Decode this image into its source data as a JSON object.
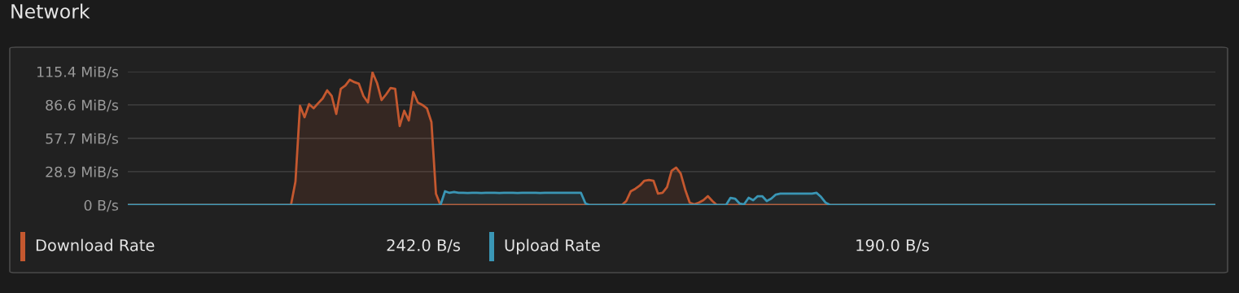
{
  "chart_data": {
    "type": "area",
    "title": "Network",
    "categories": [
      null,
      null,
      null,
      null,
      null,
      null,
      null,
      null,
      null,
      null,
      null,
      null,
      null,
      null,
      null,
      null,
      null,
      null,
      null,
      null,
      null,
      null,
      null,
      null,
      null,
      null,
      null,
      null,
      null,
      null,
      null,
      null,
      null,
      null,
      null,
      null,
      null,
      null,
      null,
      null,
      null,
      null,
      null,
      null,
      null,
      null,
      null,
      null,
      null,
      null,
      null,
      null,
      null,
      null,
      null,
      null,
      null,
      null,
      null,
      null,
      null,
      null,
      null,
      null,
      null,
      null,
      null,
      null,
      null,
      null,
      null,
      null,
      null,
      null,
      null,
      null,
      null,
      null,
      null,
      null,
      null,
      null,
      null,
      null,
      null,
      null,
      null,
      null,
      null,
      null,
      null,
      null,
      null,
      null,
      null,
      null,
      null,
      null,
      null,
      null,
      null,
      null,
      null,
      null,
      null,
      null,
      null,
      null,
      null,
      null,
      null,
      null,
      null,
      null,
      null,
      null,
      null,
      null,
      null,
      null,
      null,
      null,
      null,
      null,
      null,
      null,
      null,
      null,
      null,
      null,
      null,
      null,
      null,
      null,
      null,
      null,
      null,
      null,
      null,
      null,
      null,
      null,
      null,
      null,
      null,
      null,
      null,
      null,
      null,
      null,
      null,
      null,
      null,
      null,
      null,
      null,
      null,
      null,
      null,
      null,
      null,
      null,
      null,
      null,
      null,
      null,
      null,
      null,
      null,
      null,
      null,
      null,
      null,
      null,
      null,
      null,
      null,
      null,
      null,
      null,
      null,
      null,
      null,
      null,
      null,
      null,
      null,
      null,
      null,
      null,
      null,
      null,
      null,
      null,
      null,
      null,
      null,
      null,
      null,
      null,
      null,
      null,
      null,
      null,
      null,
      null,
      null,
      null,
      null,
      null,
      null,
      null,
      null,
      null,
      null,
      null,
      null,
      null,
      null,
      null,
      null,
      null,
      null,
      null,
      null,
      null,
      null,
      null,
      null,
      null,
      null,
      null,
      null,
      null,
      null,
      null,
      null,
      null,
      null,
      null,
      null
    ],
    "series": [
      {
        "name": "Download Rate",
        "color": "#c4582f",
        "values": [
          0,
          0,
          0,
          0,
          0,
          0,
          0,
          0,
          0,
          0,
          0,
          0,
          0,
          0,
          0,
          0,
          0,
          0,
          0,
          0,
          0,
          0,
          0,
          0,
          0,
          0,
          0,
          0,
          0,
          0,
          0,
          0,
          0,
          0,
          0,
          0,
          0,
          20.4,
          85.9,
          76.0,
          87.3,
          83.7,
          88.0,
          92.2,
          99.2,
          94.3,
          78.8,
          100.6,
          103.4,
          108.4,
          106.3,
          104.9,
          94.3,
          88.7,
          114.7,
          105.6,
          90.8,
          95.7,
          101.3,
          100.6,
          68.3,
          81.6,
          73.2,
          97.8,
          88.7,
          86.6,
          83.7,
          71.8,
          9.9,
          0,
          0,
          0,
          0,
          0,
          0,
          0,
          0,
          0,
          0,
          0,
          0,
          0,
          0,
          0,
          0,
          0,
          0,
          0,
          0,
          0,
          0,
          0,
          0,
          0,
          0,
          0,
          0,
          0,
          0,
          0,
          0,
          0,
          0,
          0,
          0,
          0,
          0,
          0,
          0,
          0,
          3.5,
          12.0,
          14.1,
          16.9,
          21.1,
          21.8,
          21.1,
          9.9,
          10.6,
          15.5,
          29.6,
          32.4,
          27.4,
          13.4,
          2.1,
          0.7,
          2.1,
          4.2,
          7.7,
          3.5,
          0,
          0,
          0,
          0,
          0,
          0,
          0,
          0,
          0,
          0,
          0,
          0,
          0,
          0,
          0,
          0,
          0,
          0,
          0,
          0,
          0,
          0,
          0,
          0,
          0,
          0,
          0,
          0,
          0,
          0,
          0,
          0,
          0,
          0,
          0,
          0,
          0,
          0,
          0,
          0,
          0,
          0,
          0,
          0,
          0,
          0,
          0,
          0,
          0,
          0,
          0,
          0,
          0,
          0,
          0,
          0,
          0,
          0,
          0,
          0,
          0,
          0,
          0,
          0,
          0,
          0,
          0,
          0,
          0,
          0,
          0,
          0,
          0,
          0,
          0,
          0,
          0,
          0,
          0,
          0,
          0,
          0,
          0,
          0,
          0,
          0,
          0,
          0,
          0,
          0,
          0,
          0,
          0,
          0,
          0,
          0,
          0,
          0,
          0,
          0,
          0,
          0,
          0,
          0,
          0,
          0,
          0,
          0,
          0,
          0,
          0
        ]
      },
      {
        "name": "Upload Rate",
        "color": "#3a96b5",
        "values": [
          0,
          0,
          0,
          0,
          0,
          0,
          0,
          0,
          0,
          0,
          0,
          0,
          0,
          0,
          0,
          0,
          0,
          0,
          0,
          0,
          0,
          0,
          0,
          0,
          0,
          0,
          0,
          0,
          0,
          0,
          0,
          0,
          0,
          0,
          0,
          0,
          0,
          0,
          0,
          0,
          0,
          0,
          0,
          0,
          0,
          0,
          0,
          0,
          0,
          0,
          0,
          0,
          0,
          0,
          0,
          0,
          0,
          0,
          0,
          0,
          0,
          0,
          0,
          0,
          0,
          0,
          0,
          0,
          0,
          0,
          12.0,
          10.6,
          11.3,
          10.6,
          10.6,
          10.4,
          10.6,
          10.6,
          10.4,
          10.6,
          10.6,
          10.6,
          10.4,
          10.6,
          10.6,
          10.6,
          10.4,
          10.6,
          10.6,
          10.6,
          10.6,
          10.4,
          10.6,
          10.6,
          10.6,
          10.6,
          10.6,
          10.6,
          10.6,
          10.6,
          10.6,
          1.4,
          0,
          0,
          0,
          0,
          0,
          0,
          0,
          0,
          0,
          0,
          0,
          0,
          0,
          0,
          0,
          0,
          0,
          0,
          0,
          0,
          0,
          0,
          0,
          0,
          0,
          0,
          0,
          0,
          0,
          0,
          0,
          6.3,
          5.6,
          1.4,
          0.7,
          6.3,
          4.2,
          7.7,
          7.7,
          3.5,
          5.6,
          9.1,
          9.9,
          9.9,
          9.9,
          9.9,
          9.9,
          9.9,
          9.9,
          9.9,
          10.6,
          7.0,
          2.1,
          0,
          0,
          0,
          0,
          0,
          0,
          0,
          0,
          0,
          0,
          0,
          0,
          0,
          0,
          0,
          0,
          0,
          0,
          0,
          0,
          0,
          0,
          0,
          0,
          0,
          0,
          0,
          0,
          0,
          0,
          0,
          0,
          0,
          0,
          0,
          0,
          0,
          0,
          0,
          0,
          0,
          0,
          0,
          0,
          0,
          0,
          0,
          0,
          0,
          0,
          0,
          0,
          0,
          0,
          0,
          0,
          0,
          0,
          0,
          0,
          0,
          0,
          0,
          0,
          0,
          0,
          0,
          0,
          0,
          0,
          0,
          0,
          0,
          0,
          0,
          0,
          0,
          0,
          0,
          0,
          0,
          0,
          0,
          0,
          0,
          0
        ]
      }
    ],
    "ylim": [
      0,
      115.4
    ],
    "yticks": [
      {
        "value": 0,
        "label": "0 B/s"
      },
      {
        "value": 28.9,
        "label": "28.9 MiB/s"
      },
      {
        "value": 57.7,
        "label": "57.7 MiB/s"
      },
      {
        "value": 86.6,
        "label": "86.6 MiB/s"
      },
      {
        "value": 115.4,
        "label": "115.4 MiB/s"
      }
    ],
    "grid": "y",
    "legend": "bottom",
    "tick_labels": "y",
    "annotations": [
      "242.0 B/s",
      "190.0 B/s"
    ]
  }
}
